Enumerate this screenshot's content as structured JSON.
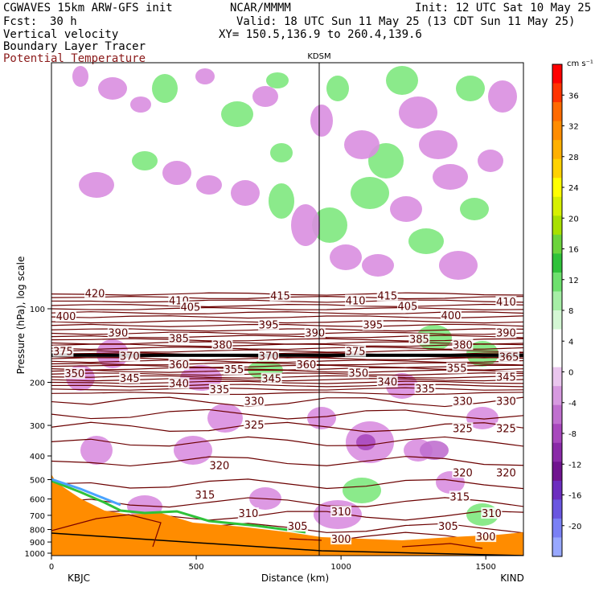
{
  "header": {
    "model": "CGWAVES 15km ARW-GFS init",
    "org": "NCAR/MMMM",
    "init": "Init: 12 UTC Sat 10 May 25",
    "fcst_label": "Fcst:",
    "fcst_value": "30 h",
    "valid": "Valid: 18 UTC Sun 11 May 25 (13 CDT Sun 11 May 25)",
    "xy": "XY= 150.5,136.9 to 260.4,139.6",
    "fields": [
      "Vertical velocity",
      "Boundary Layer Tracer",
      "Potential Temperature"
    ]
  },
  "colors": {
    "theta_contour": "#6b0000",
    "terrain": "#ff8c00",
    "pos_w": "#7ee87e",
    "neg_w": "#d98ee0"
  },
  "chart_data": {
    "type": "heatmap",
    "ylabel": "Pressure (hPa), log scale",
    "xlabel": "Distance (km)",
    "station_top": "KDSM",
    "station_left": "KBJC",
    "station_right": "KIND",
    "x_ticks": [
      0,
      500,
      1000,
      1500
    ],
    "y_ticks": [
      100,
      200,
      300,
      400,
      500,
      600,
      700,
      800,
      900,
      1000
    ],
    "xlim": [
      0,
      1630
    ],
    "colorbar": {
      "unit": "cm s⁻¹",
      "tick_values": [
        36,
        32,
        28,
        24,
        20,
        16,
        12,
        8,
        4,
        0,
        -4,
        -8,
        -12,
        -16,
        -20
      ],
      "colors": [
        "#ff0000",
        "#ff3300",
        "#ff6a00",
        "#ff8c00",
        "#ffb000",
        "#ffd200",
        "#ffff00",
        "#d6f000",
        "#a8e000",
        "#6cd43c",
        "#2fc23a",
        "#6ee06e",
        "#a6eea6",
        "#d4f7d4",
        "#ffffff",
        "#ffffff",
        "#eac6ee",
        "#d79ae0",
        "#c070cf",
        "#a848bd",
        "#8a2aa8",
        "#70148f",
        "#6c2dbf",
        "#6a56e0",
        "#7a80f5",
        "#98a8ff"
      ]
    },
    "theta_labels": [
      {
        "v": "420",
        "x": 150,
        "p": 87
      },
      {
        "v": "410",
        "x": 440,
        "p": 93
      },
      {
        "v": "415",
        "x": 790,
        "p": 89
      },
      {
        "v": "410",
        "x": 1050,
        "p": 93
      },
      {
        "v": "415",
        "x": 1160,
        "p": 89
      },
      {
        "v": "405",
        "x": 480,
        "p": 99
      },
      {
        "v": "405",
        "x": 1230,
        "p": 98
      },
      {
        "v": "400",
        "x": 50,
        "p": 108
      },
      {
        "v": "400",
        "x": 1380,
        "p": 107
      },
      {
        "v": "410",
        "x": 1570,
        "p": 94
      },
      {
        "v": "395",
        "x": 750,
        "p": 117
      },
      {
        "v": "395",
        "x": 1110,
        "p": 117
      },
      {
        "v": "390",
        "x": 230,
        "p": 126
      },
      {
        "v": "390",
        "x": 910,
        "p": 126
      },
      {
        "v": "390",
        "x": 1570,
        "p": 126
      },
      {
        "v": "385",
        "x": 440,
        "p": 133
      },
      {
        "v": "385",
        "x": 1270,
        "p": 134
      },
      {
        "v": "380",
        "x": 590,
        "p": 141
      },
      {
        "v": "380",
        "x": 1420,
        "p": 141
      },
      {
        "v": "375",
        "x": 40,
        "p": 150
      },
      {
        "v": "375",
        "x": 1050,
        "p": 150
      },
      {
        "v": "370",
        "x": 270,
        "p": 157
      },
      {
        "v": "370",
        "x": 750,
        "p": 157
      },
      {
        "v": "365",
        "x": 1580,
        "p": 158
      },
      {
        "v": "360",
        "x": 440,
        "p": 170
      },
      {
        "v": "360",
        "x": 880,
        "p": 170
      },
      {
        "v": "355",
        "x": 630,
        "p": 178
      },
      {
        "v": "355",
        "x": 1400,
        "p": 176
      },
      {
        "v": "350",
        "x": 80,
        "p": 185
      },
      {
        "v": "350",
        "x": 1060,
        "p": 184
      },
      {
        "v": "345",
        "x": 270,
        "p": 193
      },
      {
        "v": "345",
        "x": 760,
        "p": 194
      },
      {
        "v": "345",
        "x": 1570,
        "p": 191
      },
      {
        "v": "340",
        "x": 440,
        "p": 203
      },
      {
        "v": "340",
        "x": 1160,
        "p": 200
      },
      {
        "v": "335",
        "x": 580,
        "p": 215
      },
      {
        "v": "335",
        "x": 1290,
        "p": 213
      },
      {
        "v": "330",
        "x": 700,
        "p": 240
      },
      {
        "v": "330",
        "x": 1420,
        "p": 240
      },
      {
        "v": "330",
        "x": 1570,
        "p": 240
      },
      {
        "v": "325",
        "x": 700,
        "p": 300
      },
      {
        "v": "325",
        "x": 1420,
        "p": 310
      },
      {
        "v": "325",
        "x": 1570,
        "p": 310
      },
      {
        "v": "320",
        "x": 580,
        "p": 440
      },
      {
        "v": "320",
        "x": 1420,
        "p": 470
      },
      {
        "v": "320",
        "x": 1570,
        "p": 470
      },
      {
        "v": "315",
        "x": 530,
        "p": 580
      },
      {
        "v": "315",
        "x": 1410,
        "p": 590
      },
      {
        "v": "310",
        "x": 680,
        "p": 690
      },
      {
        "v": "310",
        "x": 1000,
        "p": 680
      },
      {
        "v": "310",
        "x": 1520,
        "p": 690
      },
      {
        "v": "305",
        "x": 850,
        "p": 780
      },
      {
        "v": "305",
        "x": 1370,
        "p": 780
      },
      {
        "v": "300",
        "x": 1000,
        "p": 880
      },
      {
        "v": "300",
        "x": 1500,
        "p": 860
      }
    ]
  }
}
